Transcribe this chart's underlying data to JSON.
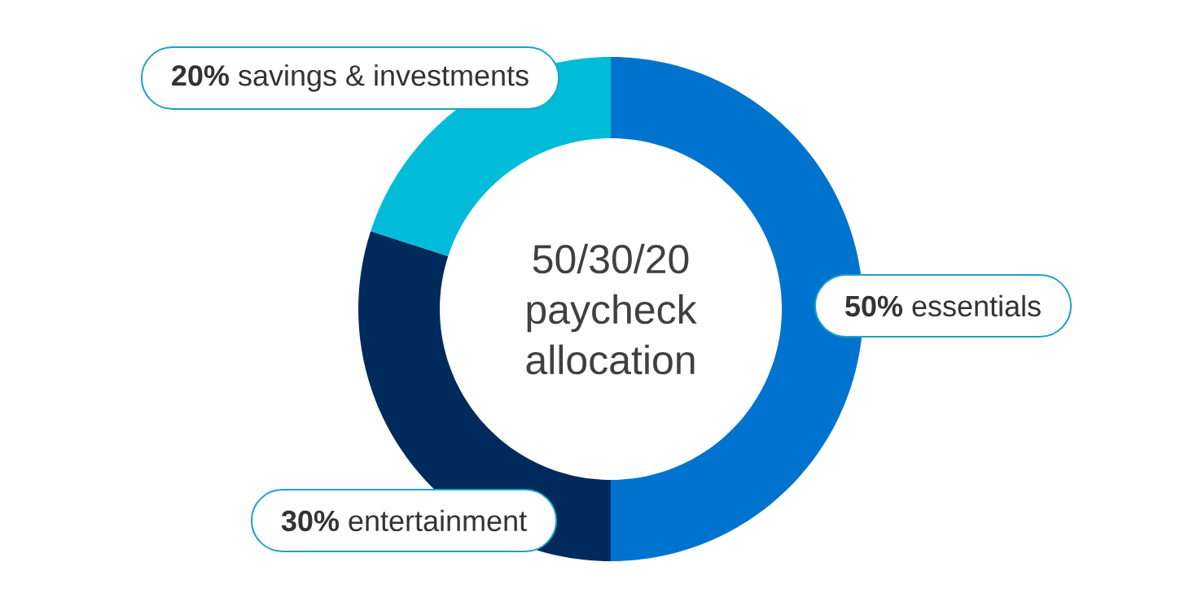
{
  "chart_data": {
    "type": "donut",
    "title": "50/30/20 paycheck allocation",
    "categories": [
      "essentials",
      "entertainment",
      "savings & investments"
    ],
    "values": [
      50,
      30,
      20
    ],
    "value_labels": [
      "50%",
      "30%",
      "20%"
    ],
    "colors": [
      "#0073cf",
      "#002a5c",
      "#00bcd8"
    ]
  }
}
